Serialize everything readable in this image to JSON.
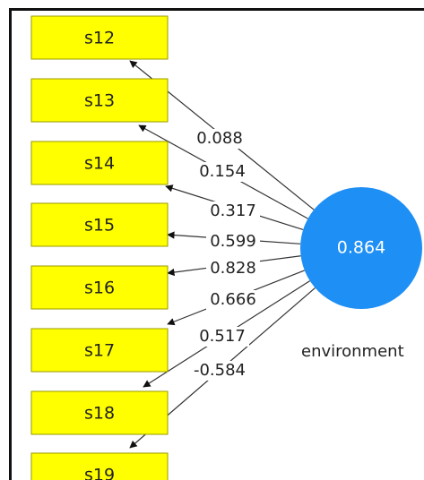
{
  "indicators": [
    "s12",
    "s13",
    "s14",
    "s15",
    "s16",
    "s17",
    "s18",
    "s19"
  ],
  "construct": {
    "label": "environment",
    "value": 0.864
  },
  "weights": [
    0.088,
    0.154,
    0.317,
    0.599,
    0.828,
    0.666,
    0.517,
    -0.584
  ]
}
